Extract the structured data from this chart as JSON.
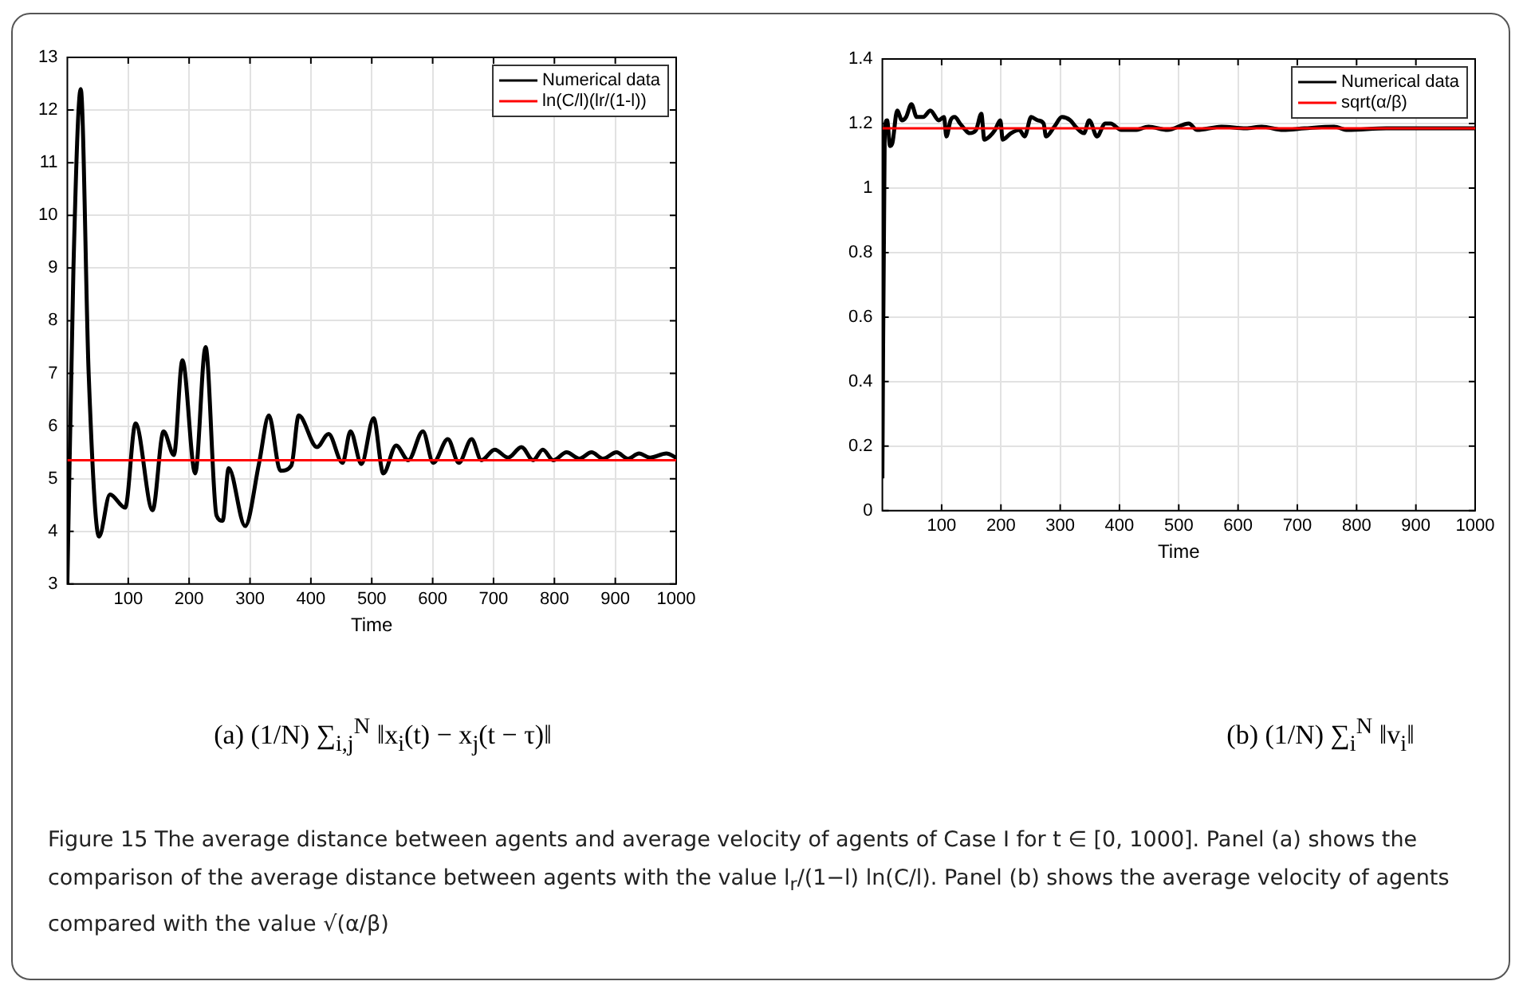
{
  "chart_data": [
    {
      "type": "line",
      "xlabel": "Time",
      "xlim": [
        0,
        1000
      ],
      "xticks": [
        100,
        200,
        300,
        400,
        500,
        600,
        700,
        800,
        900,
        1000
      ],
      "ylim": [
        3,
        13
      ],
      "yticks": [
        3,
        4,
        5,
        6,
        7,
        8,
        9,
        10,
        11,
        12,
        13
      ],
      "grid": true,
      "legend": "top right",
      "marker": "none",
      "line_style": "solid",
      "series": [
        {
          "name": "Numerical data",
          "color": "#000000",
          "x": [
            0,
            10,
            22,
            35,
            52,
            70,
            95,
            112,
            140,
            158,
            175,
            189,
            210,
            227,
            245,
            255,
            265,
            292,
            315,
            331,
            350,
            368,
            380,
            410,
            429,
            452,
            465,
            483,
            503,
            519,
            540,
            560,
            584,
            601,
            625,
            643,
            664,
            680,
            702,
            724,
            746,
            765,
            781,
            798,
            820,
            841,
            861,
            880,
            902,
            921,
            939,
            957,
            984,
            1000
          ],
          "values": [
            3,
            9,
            12.4,
            7,
            3.9,
            4.7,
            4.45,
            6.05,
            4.4,
            5.9,
            5.45,
            7.25,
            5.1,
            7.5,
            4.3,
            4.2,
            5.2,
            4.1,
            5.3,
            6.2,
            5.15,
            5.25,
            6.2,
            5.6,
            5.85,
            5.3,
            5.9,
            5.28,
            6.15,
            5.1,
            5.63,
            5.35,
            5.9,
            5.3,
            5.75,
            5.3,
            5.75,
            5.35,
            5.55,
            5.4,
            5.6,
            5.35,
            5.55,
            5.35,
            5.5,
            5.38,
            5.5,
            5.38,
            5.5,
            5.38,
            5.48,
            5.4,
            5.48,
            5.4
          ]
        },
        {
          "name": "ln(C/l)(lr/(1-l))",
          "color": "#ff0000",
          "x": [
            0,
            1000
          ],
          "values": [
            5.35,
            5.35
          ]
        }
      ],
      "annotations": [
        "(a) (1/N) ∑$_{i,j}$$^{N}$ ‖x$_{i}$(t) − x$_{j}$(t − τ)‖",
        "Figure 15 The average distance between agents and average velocity of agents of Case I for t ∈ [0, 1000]. Panel (a) shows the comparison of the average distance between agents with the value l$_{r}$/(1−l) ln(C/l). Panel (b) shows the average velocity of agents compared with the value √(α/β)"
      ]
    },
    {
      "type": "line",
      "xlabel": "Time",
      "xlim": [
        0,
        1000
      ],
      "xticks": [
        100,
        200,
        300,
        400,
        500,
        600,
        700,
        800,
        900,
        1000
      ],
      "ylim": [
        0,
        1.4
      ],
      "yticks": [
        0,
        0.2,
        0.4,
        0.6,
        0.8,
        1,
        1.2,
        1.4
      ],
      "grid": true,
      "legend": "top right",
      "marker": "none",
      "line_style": "solid",
      "series": [
        {
          "name": "Numerical data",
          "color": "#000000",
          "x": [
            0,
            4,
            8,
            13,
            17,
            25,
            33,
            40,
            49,
            58,
            69,
            81,
            95,
            104,
            108,
            115,
            122,
            131,
            140,
            147,
            158,
            167,
            172,
            181,
            190,
            199,
            203,
            217,
            231,
            240,
            251,
            262,
            272,
            276,
            290,
            303,
            317,
            326,
            340,
            349,
            362,
            376,
            385,
            403,
            426,
            449,
            481,
            517,
            531,
            572,
            613,
            640,
            676,
            712,
            762,
            785,
            850,
            1000
          ],
          "values": [
            0.1,
            1.18,
            1.21,
            1.13,
            1.14,
            1.24,
            1.21,
            1.22,
            1.26,
            1.22,
            1.22,
            1.24,
            1.21,
            1.22,
            1.16,
            1.21,
            1.22,
            1.2,
            1.18,
            1.17,
            1.18,
            1.23,
            1.15,
            1.16,
            1.18,
            1.21,
            1.15,
            1.17,
            1.18,
            1.16,
            1.22,
            1.21,
            1.2,
            1.16,
            1.19,
            1.22,
            1.21,
            1.19,
            1.17,
            1.21,
            1.16,
            1.2,
            1.2,
            1.18,
            1.18,
            1.19,
            1.18,
            1.2,
            1.18,
            1.19,
            1.185,
            1.19,
            1.18,
            1.185,
            1.19,
            1.18,
            1.185,
            1.185
          ]
        },
        {
          "name": "sqrt(α/β)",
          "color": "#ff0000",
          "x": [
            0,
            1000
          ],
          "values": [
            1.185,
            1.185
          ]
        }
      ],
      "annotations": [
        "(b) (1/N) ∑$_{i}$$^{N}$ ‖v$_{i}$‖"
      ]
    }
  ]
}
